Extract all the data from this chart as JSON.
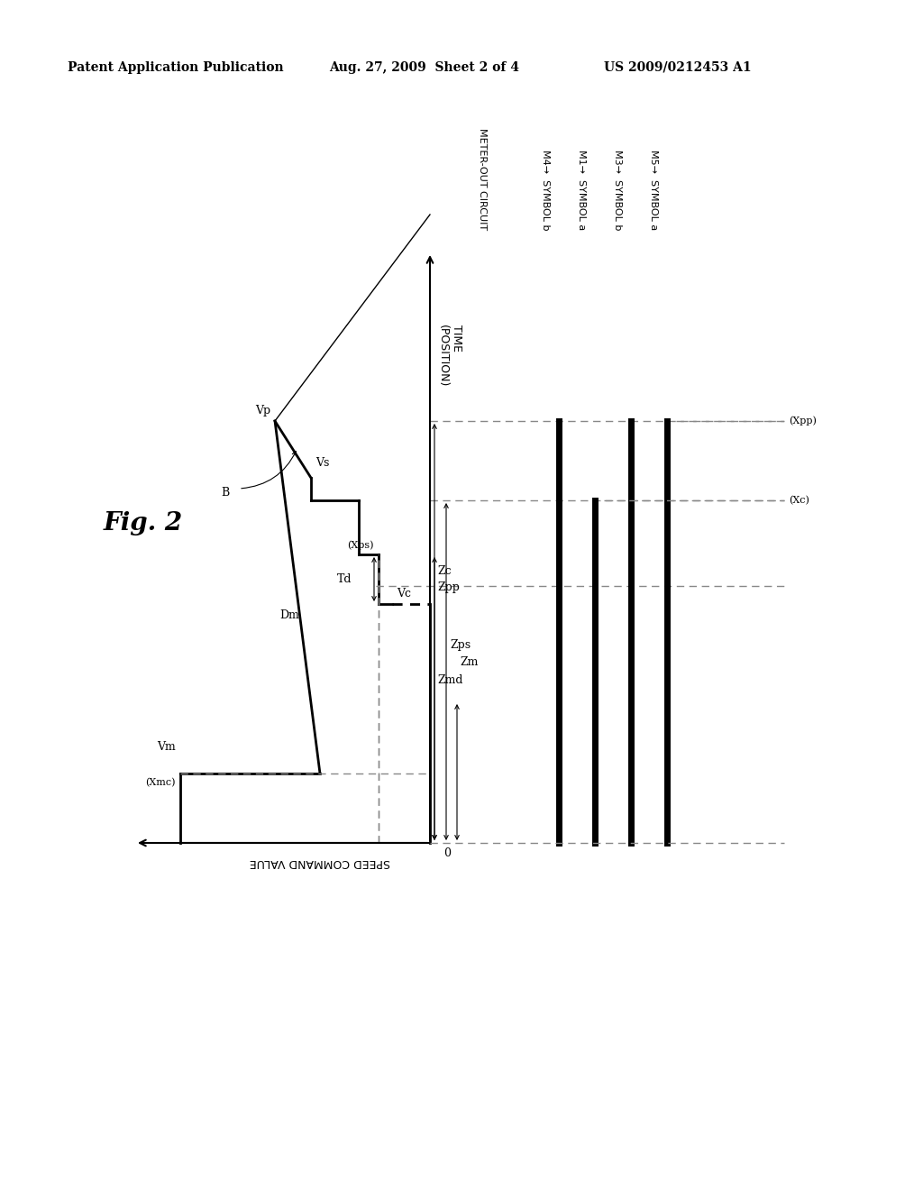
{
  "header_left": "Patent Application Publication",
  "header_mid": "Aug. 27, 2009  Sheet 2 of 4",
  "header_right": "US 2009/0212453 A1",
  "fig_label": "Fig. 2",
  "bg_color": "#ffffff",
  "line_color": "#000000",
  "dashed_color": "#888888",
  "time_label": "TIME\n(POSITION)",
  "speed_label": "SPEED COMMAND VALUE",
  "meter_out_label": "METER-OUT CIRCUIT",
  "symbols": [
    "M4→  SYMBOL b",
    "M1→  SYMBOL a",
    "M3→  SYMBOL b",
    "M5→  SYMBOL a"
  ]
}
